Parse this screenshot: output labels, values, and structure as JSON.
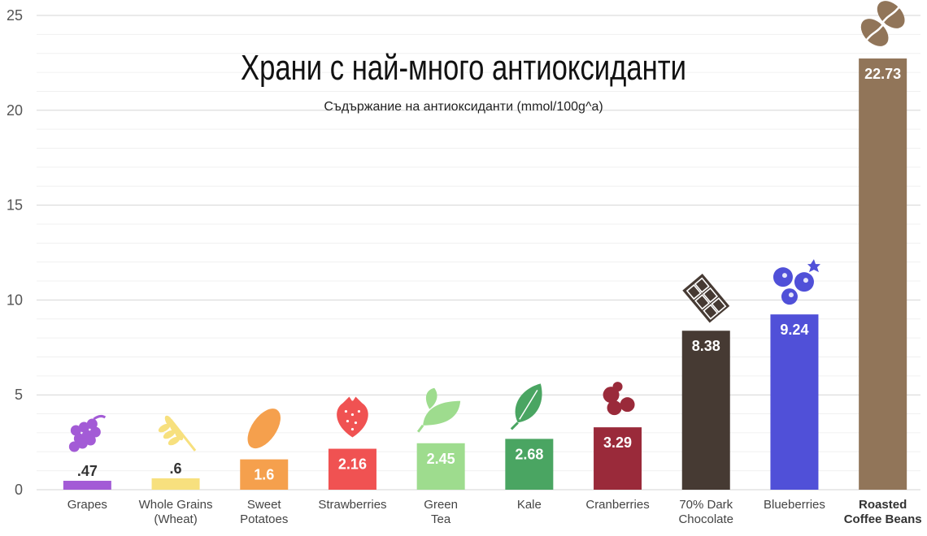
{
  "chart_data": {
    "type": "bar",
    "title": "Храни с най-много антиоксиданти",
    "subtitle": "Съдържание на антиоксиданти (mmol/100g^a)",
    "ylim": [
      0,
      25
    ],
    "yticks": [
      0,
      5,
      10,
      15,
      20,
      25
    ],
    "grid": true,
    "categories": [
      [
        "Grapes"
      ],
      [
        "Whole Grains",
        "(Wheat)"
      ],
      [
        "Sweet",
        "Potatoes"
      ],
      [
        "Strawberries"
      ],
      [
        "Green",
        "Tea"
      ],
      [
        "Kale"
      ],
      [
        "Cranberries"
      ],
      [
        "70% Dark",
        "Chocolate"
      ],
      [
        "Blueberries"
      ],
      [
        "Roasted",
        "Coffee Beans"
      ]
    ],
    "values": [
      0.47,
      0.6,
      1.6,
      2.16,
      2.45,
      2.68,
      3.29,
      8.38,
      9.24,
      22.73
    ],
    "value_labels": [
      ".47",
      ".6",
      "1.6",
      "2.16",
      "2.45",
      "2.68",
      "3.29",
      "8.38",
      "9.24",
      "22.73"
    ],
    "colors": [
      "#a35bd6",
      "#f7e07e",
      "#f5a04d",
      "#f05252",
      "#9edc8e",
      "#4aa562",
      "#9a2a3a",
      "#463a33",
      "#5050d8",
      "#917559"
    ],
    "icons": [
      "grapes-icon",
      "wheat-icon",
      "sweet-potato-icon",
      "strawberry-icon",
      "green-tea-leaf-icon",
      "kale-leaf-icon",
      "cranberries-icon",
      "dark-chocolate-icon",
      "blueberries-icon",
      "coffee-bean-icon"
    ],
    "highlight_last_label": true
  }
}
